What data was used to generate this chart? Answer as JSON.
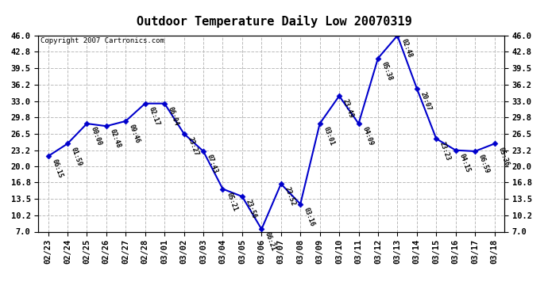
{
  "title": "Outdoor Temperature Daily Low 20070319",
  "copyright": "Copyright 2007 Cartronics.com",
  "dates": [
    "02/23",
    "02/24",
    "02/25",
    "02/26",
    "02/27",
    "02/28",
    "03/01",
    "03/02",
    "03/03",
    "03/04",
    "03/05",
    "03/06",
    "03/07",
    "03/08",
    "03/09",
    "03/10",
    "03/11",
    "03/12",
    "03/13",
    "03/14",
    "03/15",
    "03/16",
    "03/17",
    "03/18"
  ],
  "values": [
    22.0,
    24.5,
    28.5,
    28.0,
    29.0,
    32.5,
    32.5,
    26.5,
    23.0,
    15.5,
    14.0,
    7.5,
    16.5,
    12.5,
    28.5,
    34.0,
    28.5,
    41.5,
    46.0,
    35.5,
    25.5,
    23.2,
    23.0,
    24.5
  ],
  "time_labels": [
    "06:15",
    "01:59",
    "00:00",
    "02:48",
    "09:46",
    "02:17",
    "06:04",
    "23:27",
    "07:43",
    "05:21",
    "23:56",
    "06:21",
    "23:52",
    "03:16",
    "03:01",
    "23:49",
    "04:09",
    "05:38",
    "02:48",
    "20:07",
    "23:23",
    "04:15",
    "06:59",
    "05:36"
  ],
  "ylim": [
    7.0,
    46.0
  ],
  "yticks": [
    7.0,
    10.2,
    13.5,
    16.8,
    20.0,
    23.2,
    26.5,
    29.8,
    33.0,
    36.2,
    39.5,
    42.8,
    46.0
  ],
  "line_color": "#0000cc",
  "marker_color": "#0000cc",
  "bg_color": "#ffffff",
  "grid_color": "#bbbbbb",
  "title_fontsize": 11,
  "tick_fontsize": 7.5
}
